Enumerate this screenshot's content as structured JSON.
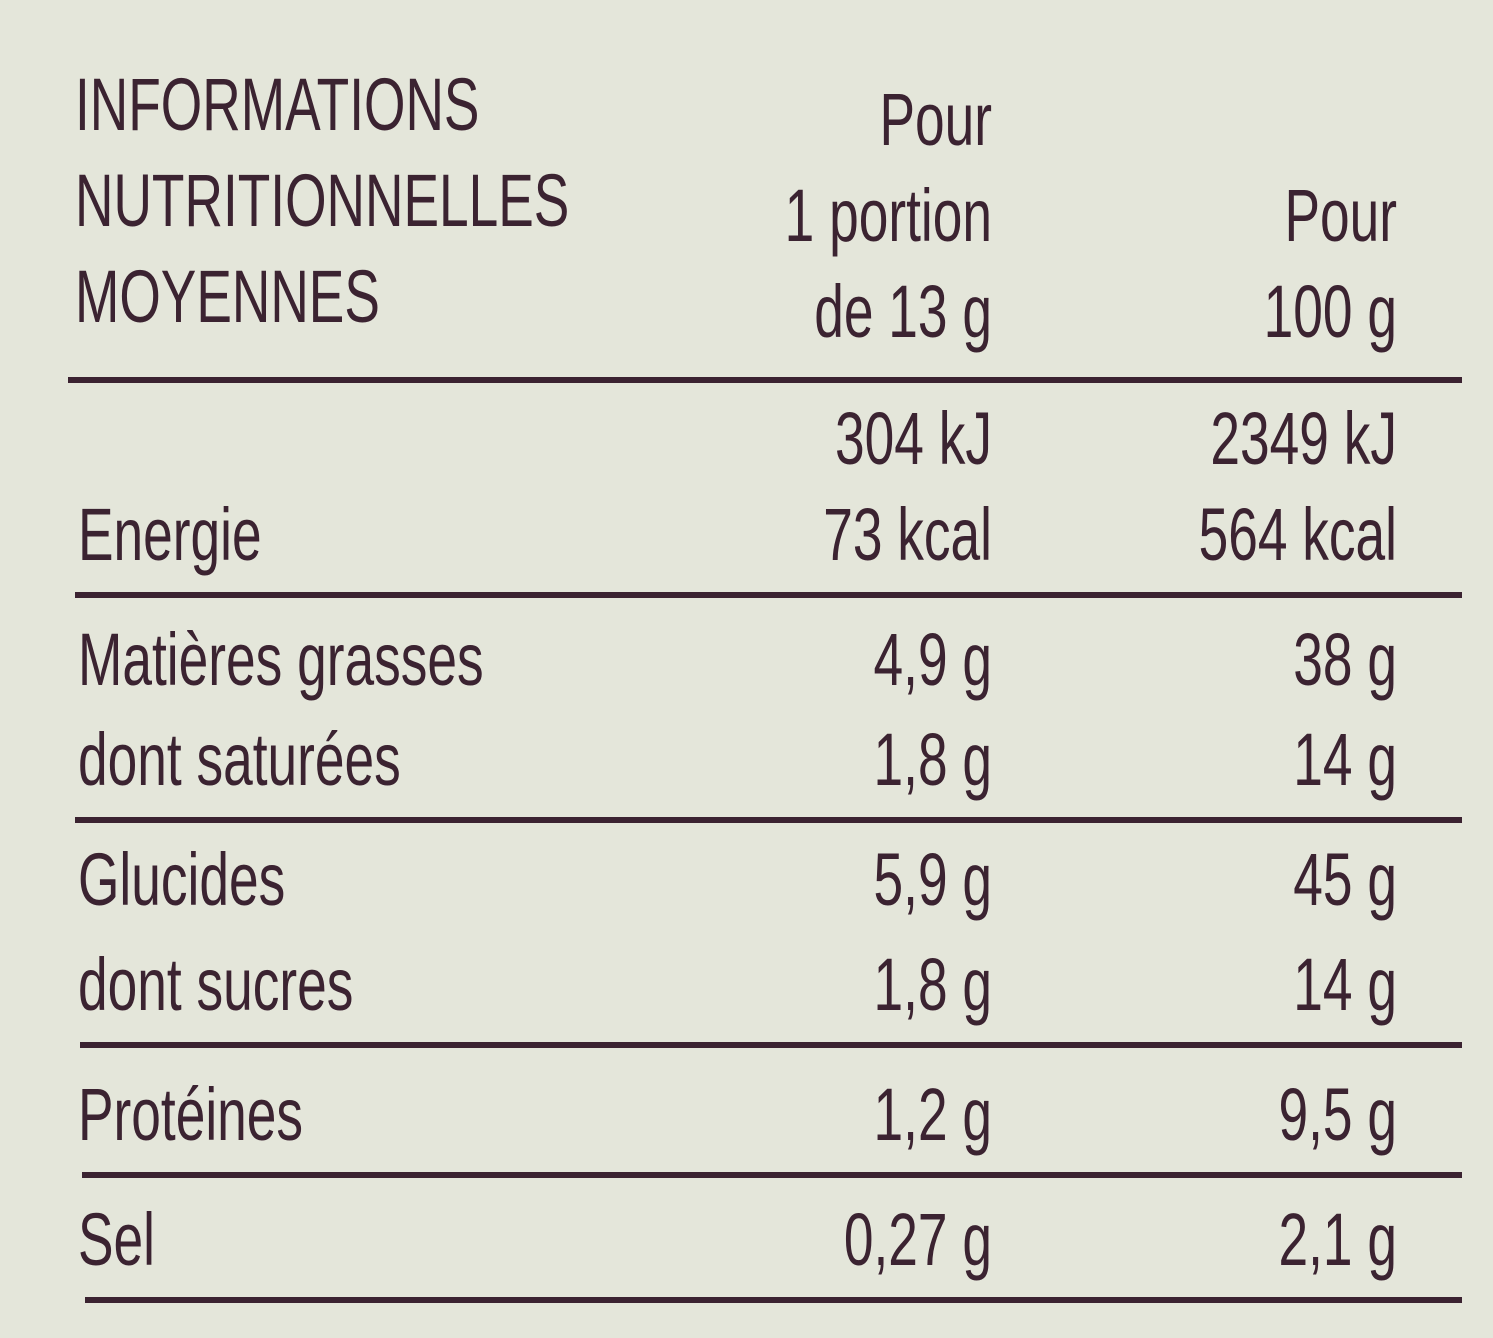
{
  "header": {
    "title": [
      "INFORMATIONS",
      "NUTRITIONNELLES",
      "MOYENNES"
    ],
    "per_portion": [
      "Pour",
      "1 portion",
      "de 13 g"
    ],
    "per_100g": [
      "Pour",
      "100 g"
    ]
  },
  "rows": [
    {
      "label": "Energie",
      "per_portion": [
        "304 kJ",
        "73 kcal"
      ],
      "per_100g": [
        "2349 kJ",
        "564 kcal"
      ]
    },
    {
      "label": "Matières grasses",
      "per_portion": "4,9 g",
      "per_100g": "38 g"
    },
    {
      "label": "dont saturées",
      "per_portion": "1,8 g",
      "per_100g": "14 g"
    },
    {
      "label": "Glucides",
      "per_portion": "5,9 g",
      "per_100g": "45 g"
    },
    {
      "label": "dont sucres",
      "per_portion": "1,8 g",
      "per_100g": "14 g"
    },
    {
      "label": "Protéines",
      "per_portion": "1,2 g",
      "per_100g": "9,5 g"
    },
    {
      "label": "Sel",
      "per_portion": "0,27 g",
      "per_100g": "2,1 g"
    }
  ]
}
